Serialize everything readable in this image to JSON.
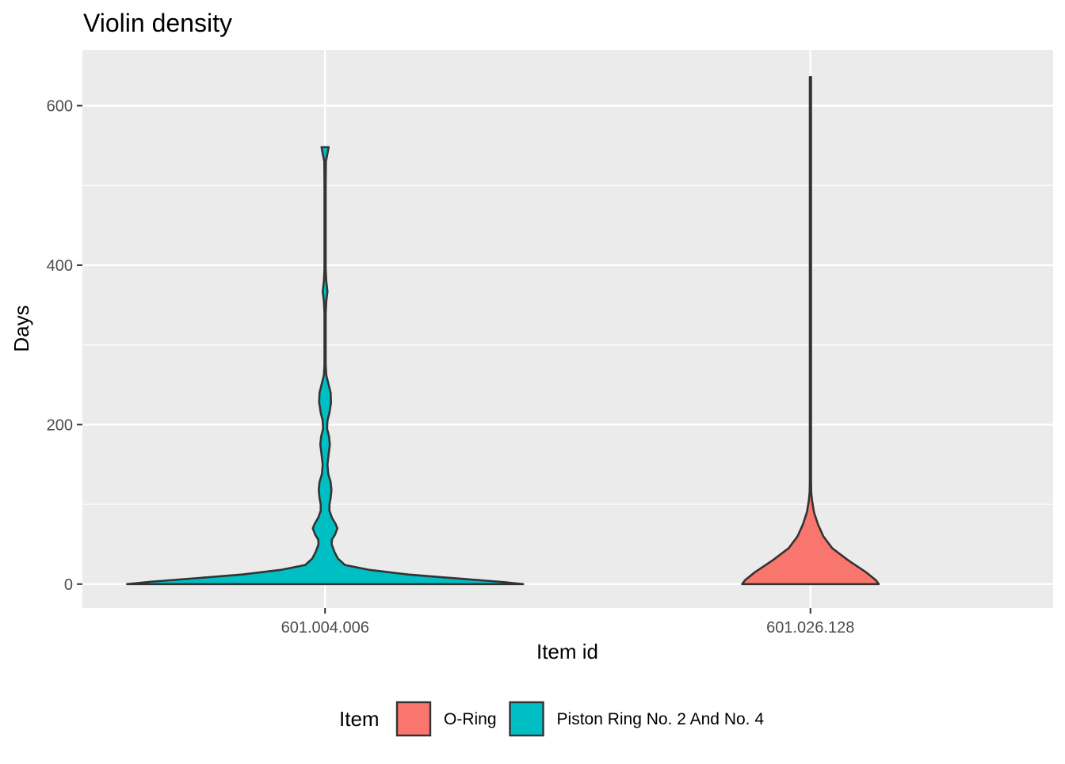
{
  "chart_data": {
    "type": "violin",
    "title": "Violin density",
    "xlabel": "Item id",
    "ylabel": "Days",
    "ylim": [
      -30,
      670
    ],
    "yticks": [
      0,
      200,
      400,
      600
    ],
    "ytick_labels": [
      "0",
      "200",
      "400",
      "600"
    ],
    "categories": [
      "601.004.006",
      "601.026.128"
    ],
    "grid": true,
    "legend": {
      "title": "Item",
      "position": "bottom",
      "entries": [
        {
          "label": "O-Ring",
          "color": "#F8766D"
        },
        {
          "label": "Piston Ring No. 2 And No. 4",
          "color": "#00BFC4"
        }
      ]
    },
    "series": [
      {
        "category": "601.004.006",
        "group": "Piston Ring No. 2 And No. 4",
        "color": "#00BFC4",
        "y_min": 0,
        "y_max": 548,
        "density_profile": [
          [
            0,
            1.0
          ],
          [
            3,
            0.88
          ],
          [
            8,
            0.62
          ],
          [
            12,
            0.42
          ],
          [
            18,
            0.22
          ],
          [
            24,
            0.1
          ],
          [
            32,
            0.065
          ],
          [
            40,
            0.048
          ],
          [
            50,
            0.033
          ],
          [
            56,
            0.035
          ],
          [
            62,
            0.05
          ],
          [
            70,
            0.062
          ],
          [
            76,
            0.052
          ],
          [
            83,
            0.035
          ],
          [
            92,
            0.022
          ],
          [
            100,
            0.022
          ],
          [
            108,
            0.028
          ],
          [
            118,
            0.032
          ],
          [
            128,
            0.028
          ],
          [
            138,
            0.016
          ],
          [
            150,
            0.012
          ],
          [
            163,
            0.018
          ],
          [
            175,
            0.024
          ],
          [
            185,
            0.02
          ],
          [
            195,
            0.01
          ],
          [
            205,
            0.012
          ],
          [
            215,
            0.022
          ],
          [
            228,
            0.03
          ],
          [
            240,
            0.028
          ],
          [
            252,
            0.016
          ],
          [
            262,
            0.006
          ],
          [
            275,
            0.003
          ],
          [
            300,
            0.003
          ],
          [
            340,
            0.003
          ],
          [
            355,
            0.006
          ],
          [
            367,
            0.012
          ],
          [
            380,
            0.006
          ],
          [
            395,
            0.003
          ],
          [
            440,
            0.003
          ],
          [
            500,
            0.003
          ],
          [
            530,
            0.004
          ],
          [
            540,
            0.012
          ],
          [
            548,
            0.018
          ]
        ]
      },
      {
        "category": "601.026.128",
        "group": "O-Ring",
        "color": "#F8766D",
        "y_min": 0,
        "y_max": 636,
        "density_profile": [
          [
            0,
            0.345
          ],
          [
            5,
            0.33
          ],
          [
            15,
            0.28
          ],
          [
            30,
            0.19
          ],
          [
            45,
            0.11
          ],
          [
            60,
            0.065
          ],
          [
            75,
            0.038
          ],
          [
            90,
            0.018
          ],
          [
            105,
            0.008
          ],
          [
            115,
            0.004
          ],
          [
            130,
            0.003
          ],
          [
            180,
            0.003
          ],
          [
            300,
            0.003
          ],
          [
            450,
            0.003
          ],
          [
            600,
            0.003
          ],
          [
            636,
            0.003
          ]
        ]
      }
    ]
  }
}
